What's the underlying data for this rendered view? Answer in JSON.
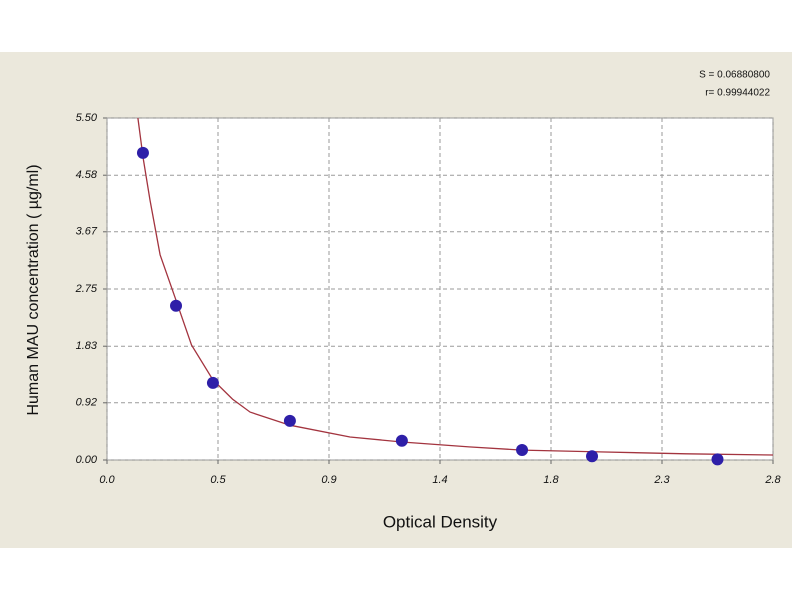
{
  "chart_data": {
    "type": "scatter",
    "x_label": "Optical Density",
    "y_label": "Human MAU concentration ( µg/ml)",
    "annotations": [
      "S = 0.06880800",
      "r= 0.99944022"
    ],
    "x": [
      0.149,
      0.286,
      0.439,
      0.758,
      1.222,
      1.72,
      2.01,
      2.53
    ],
    "values": [
      4.94,
      2.48,
      1.24,
      0.63,
      0.31,
      0.16,
      0.06,
      0.01
    ],
    "color": "#2e1fa8",
    "curve": {
      "x": [
        0.128,
        0.15,
        0.178,
        0.22,
        0.286,
        0.35,
        0.439,
        0.52,
        0.593,
        0.758,
        1.007,
        1.222,
        1.5,
        1.72,
        2.04,
        2.4,
        2.76
      ],
      "values": [
        5.5,
        4.85,
        4.18,
        3.3,
        2.57,
        1.85,
        1.29,
        0.98,
        0.77,
        0.56,
        0.37,
        0.29,
        0.21,
        0.16,
        0.13,
        0.1,
        0.08
      ],
      "color": "#a3343f"
    },
    "xlim": [
      0,
      2.76
    ],
    "ylim": [
      0,
      5.5
    ],
    "xticks": [
      {
        "value": 0,
        "label": "0.0"
      },
      {
        "value": 0.46,
        "label": "0.5"
      },
      {
        "value": 0.92,
        "label": "0.9"
      },
      {
        "value": 1.38,
        "label": "1.4"
      },
      {
        "value": 1.84,
        "label": "1.8"
      },
      2.3,
      {
        "value": 2.76,
        "label": "2.8"
      }
    ],
    "yticks": [
      {
        "value": 0,
        "label": "0.00"
      },
      0.92,
      1.83,
      2.75,
      3.67,
      4.58,
      {
        "value": 5.5,
        "label": "5.50"
      }
    ],
    "grid": true
  }
}
